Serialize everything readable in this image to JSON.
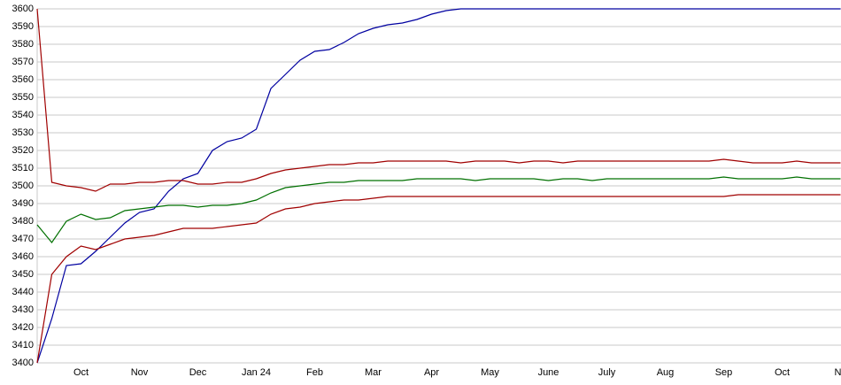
{
  "chart_data": {
    "type": "line",
    "categories": [
      null,
      null,
      null,
      "Oct",
      null,
      null,
      null,
      "Nov",
      null,
      null,
      null,
      "Dec",
      null,
      null,
      null,
      "Jan 24",
      null,
      null,
      null,
      "Feb",
      null,
      null,
      null,
      "Mar",
      null,
      null,
      null,
      "Apr",
      null,
      null,
      null,
      "May",
      null,
      null,
      null,
      "June",
      null,
      null,
      null,
      "July",
      null,
      null,
      null,
      "Aug",
      null,
      null,
      null,
      "Sep",
      null,
      null,
      null,
      "Oct",
      null,
      null,
      null,
      "No"
    ],
    "series": [
      {
        "color": "#0000a0",
        "values": [
          3400,
          3425,
          3455,
          3456,
          3463,
          3471,
          3479,
          3485,
          3487,
          3497,
          3504,
          3507,
          3520,
          3525,
          3527,
          3532,
          3555,
          3563,
          3571,
          3576,
          3577,
          3581,
          3586,
          3589,
          3591,
          3592,
          3594,
          3597,
          3599,
          3600,
          3600,
          3600,
          3600,
          3600,
          3600,
          3600,
          3600,
          3600,
          3600,
          3600,
          3600,
          3600,
          3600,
          3600,
          3600,
          3600,
          3600,
          3600,
          3600,
          3600,
          3600,
          3600,
          3600,
          3600,
          3600,
          3600
        ]
      },
      {
        "color": "#a00000",
        "values": [
          3600,
          3502,
          3500,
          3499,
          3497,
          3501,
          3501,
          3502,
          3502,
          3503,
          3503,
          3501,
          3501,
          3502,
          3502,
          3504,
          3507,
          3509,
          3510,
          3511,
          3512,
          3512,
          3513,
          3513,
          3514,
          3514,
          3514,
          3514,
          3514,
          3513,
          3514,
          3514,
          3514,
          3513,
          3514,
          3514,
          3513,
          3514,
          3514,
          3514,
          3514,
          3514,
          3514,
          3514,
          3514,
          3514,
          3514,
          3515,
          3514,
          3513,
          3513,
          3513,
          3514,
          3513,
          3513,
          3513
        ]
      },
      {
        "color": "#007000",
        "values": [
          3478,
          3468,
          3480,
          3484,
          3481,
          3482,
          3486,
          3487,
          3488,
          3489,
          3489,
          3488,
          3489,
          3489,
          3490,
          3492,
          3496,
          3499,
          3500,
          3501,
          3502,
          3502,
          3503,
          3503,
          3503,
          3503,
          3504,
          3504,
          3504,
          3504,
          3503,
          3504,
          3504,
          3504,
          3504,
          3503,
          3504,
          3504,
          3503,
          3504,
          3504,
          3504,
          3504,
          3504,
          3504,
          3504,
          3504,
          3505,
          3504,
          3504,
          3504,
          3504,
          3505,
          3504,
          3504,
          3504
        ]
      },
      {
        "color": "#a00000",
        "values": [
          3400,
          3450,
          3460,
          3466,
          3464,
          3467,
          3470,
          3471,
          3472,
          3474,
          3476,
          3476,
          3476,
          3477,
          3478,
          3479,
          3484,
          3487,
          3488,
          3490,
          3491,
          3492,
          3492,
          3493,
          3494,
          3494,
          3494,
          3494,
          3494,
          3494,
          3494,
          3494,
          3494,
          3494,
          3494,
          3494,
          3494,
          3494,
          3494,
          3494,
          3494,
          3494,
          3494,
          3494,
          3494,
          3494,
          3494,
          3494,
          3495,
          3495,
          3495,
          3495,
          3495,
          3495,
          3495,
          3495
        ]
      }
    ],
    "ylim": [
      3400,
      3600
    ],
    "yticks": [
      3400,
      3410,
      3420,
      3430,
      3440,
      3450,
      3460,
      3470,
      3480,
      3490,
      3500,
      3510,
      3520,
      3530,
      3540,
      3550,
      3560,
      3570,
      3580,
      3590,
      3600
    ],
    "grid": true
  }
}
